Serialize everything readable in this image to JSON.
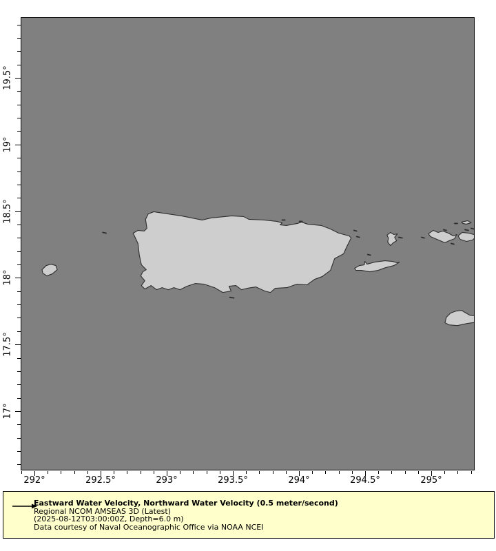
{
  "colors": {
    "ocean": "#808080",
    "land": "#cecece",
    "coastline": "#2e2e2e",
    "legend_background": "#ffffcc",
    "frame": "#000000"
  },
  "axes": {
    "x": {
      "major_values": [
        292,
        292.5,
        293,
        293.5,
        294,
        294.5,
        295
      ],
      "major_labels": [
        "292°",
        "292.5°",
        "293°",
        "293.5°",
        "294°",
        "294.5°",
        "295°"
      ],
      "minor_step": 0.1,
      "min": 291.9,
      "max": 295.3
    },
    "y": {
      "major_values": [
        19.5,
        19,
        18.5,
        18,
        17.5,
        17
      ],
      "major_labels": [
        "19.5°",
        "19°",
        "18.5°",
        "18°",
        "17.5°",
        "17°"
      ],
      "minor_step": 0.1,
      "min": 16.6,
      "max": 19.9
    }
  },
  "legend": {
    "title": "Eastward Water Velocity, Northward Water Velocity (0.5 meter/second)",
    "subtitle": "Regional NCOM AMSEAS 3D (Latest)",
    "timestamp": "(2025-08-12T03:00:00Z, Depth=6.0 m)",
    "credit": "Data courtesy of Naval Oceanographic Office via NOAA NCEI"
  },
  "map": {
    "landmasses": [
      {
        "name": "puerto-rico",
        "points": [
          [
            192,
            281
          ],
          [
            205,
            283
          ],
          [
            232,
            287
          ],
          [
            252,
            291
          ],
          [
            262,
            293
          ],
          [
            275,
            290
          ],
          [
            305,
            287
          ],
          [
            322,
            288
          ],
          [
            330,
            292
          ],
          [
            352,
            293
          ],
          [
            370,
            295
          ],
          [
            378,
            297
          ],
          [
            375,
            300
          ],
          [
            384,
            301
          ],
          [
            400,
            298
          ],
          [
            406,
            296
          ],
          [
            415,
            299
          ],
          [
            435,
            301
          ],
          [
            448,
            306
          ],
          [
            460,
            312
          ],
          [
            475,
            316
          ],
          [
            478,
            319
          ],
          [
            472,
            331
          ],
          [
            467,
            342
          ],
          [
            454,
            349
          ],
          [
            448,
            366
          ],
          [
            436,
            375
          ],
          [
            425,
            379
          ],
          [
            414,
            387
          ],
          [
            399,
            386
          ],
          [
            385,
            391
          ],
          [
            368,
            392
          ],
          [
            361,
            398
          ],
          [
            353,
            396
          ],
          [
            340,
            390
          ],
          [
            327,
            392
          ],
          [
            319,
            394
          ],
          [
            311,
            388
          ],
          [
            301,
            389
          ],
          [
            304,
            396
          ],
          [
            292,
            398
          ],
          [
            280,
            391
          ],
          [
            265,
            386
          ],
          [
            252,
            385
          ],
          [
            240,
            389
          ],
          [
            230,
            394
          ],
          [
            221,
            391
          ],
          [
            213,
            394
          ],
          [
            204,
            391
          ],
          [
            196,
            394
          ],
          [
            188,
            388
          ],
          [
            179,
            393
          ],
          [
            174,
            388
          ],
          [
            179,
            381
          ],
          [
            173,
            374
          ],
          [
            176,
            368
          ],
          [
            181,
            365
          ],
          [
            174,
            358
          ],
          [
            171,
            344
          ],
          [
            169,
            327
          ],
          [
            162,
            312
          ],
          [
            169,
            308
          ],
          [
            178,
            309
          ],
          [
            182,
            305
          ],
          [
            180,
            292
          ],
          [
            184,
            284
          ]
        ]
      },
      {
        "name": "vieques",
        "points": [
          [
            483,
            363
          ],
          [
            490,
            359
          ],
          [
            497,
            358
          ],
          [
            498,
            353
          ],
          [
            501,
            357
          ],
          [
            512,
            354
          ],
          [
            527,
            352
          ],
          [
            538,
            353
          ],
          [
            545,
            355
          ],
          [
            548,
            354
          ],
          [
            540,
            359
          ],
          [
            528,
            362
          ],
          [
            517,
            366
          ],
          [
            505,
            368
          ],
          [
            493,
            366
          ],
          [
            485,
            366
          ]
        ]
      },
      {
        "name": "culebra",
        "points": [
          [
            530,
            315
          ],
          [
            535,
            311
          ],
          [
            540,
            314
          ],
          [
            545,
            313
          ],
          [
            541,
            318
          ],
          [
            544,
            323
          ],
          [
            539,
            326
          ],
          [
            535,
            330
          ],
          [
            531,
            325
          ],
          [
            532,
            319
          ]
        ]
      },
      {
        "name": "st-thomas",
        "points": [
          [
            590,
            313
          ],
          [
            597,
            308
          ],
          [
            604,
            311
          ],
          [
            611,
            309
          ],
          [
            619,
            312
          ],
          [
            626,
            316
          ],
          [
            631,
            314
          ],
          [
            628,
            320
          ],
          [
            620,
            323
          ],
          [
            614,
            326
          ],
          [
            607,
            323
          ],
          [
            600,
            320
          ],
          [
            593,
            317
          ]
        ]
      },
      {
        "name": "st-john",
        "points": [
          [
            633,
            316
          ],
          [
            639,
            311
          ],
          [
            648,
            312
          ],
          [
            656,
            314
          ],
          [
            659,
            317
          ],
          [
            654,
            322
          ],
          [
            645,
            324
          ],
          [
            636,
            321
          ]
        ]
      },
      {
        "name": "north-cay",
        "points": [
          [
            638,
            296
          ],
          [
            647,
            294
          ],
          [
            652,
            297
          ],
          [
            645,
            299
          ],
          [
            640,
            298
          ]
        ]
      },
      {
        "name": "st-croix",
        "points": [
          [
            614,
            442
          ],
          [
            616,
            434
          ],
          [
            622,
            428
          ],
          [
            630,
            425
          ],
          [
            638,
            424
          ],
          [
            643,
            427
          ],
          [
            650,
            431
          ],
          [
            659,
            432
          ],
          [
            659,
            441
          ],
          [
            646,
            443
          ],
          [
            632,
            446
          ],
          [
            620,
            445
          ]
        ]
      },
      {
        "name": "mona",
        "points": [
          [
            30,
            365
          ],
          [
            36,
            359
          ],
          [
            43,
            357
          ],
          [
            50,
            359
          ],
          [
            52,
            365
          ],
          [
            45,
            371
          ],
          [
            37,
            374
          ],
          [
            31,
            370
          ]
        ]
      }
    ],
    "islets": [
      [
        118,
        311,
        5,
        1
      ],
      [
        482,
        308,
        4,
        1
      ],
      [
        486,
        317,
        4,
        1
      ],
      [
        502,
        343,
        4,
        1
      ],
      [
        547,
        318,
        5,
        1
      ],
      [
        580,
        318,
        4,
        1
      ],
      [
        612,
        307,
        4,
        1
      ],
      [
        628,
        298,
        4,
        0
      ],
      [
        643,
        307,
        5,
        1
      ],
      [
        652,
        305,
        4,
        1
      ],
      [
        623,
        327,
        4,
        1
      ],
      [
        302,
        405,
        6,
        1
      ],
      [
        378,
        293,
        4,
        0
      ],
      [
        403,
        295,
        4,
        0
      ]
    ]
  }
}
